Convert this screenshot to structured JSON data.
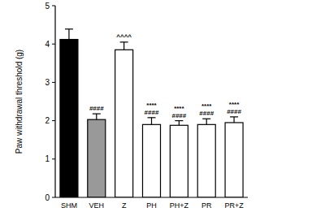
{
  "chart_data": {
    "type": "bar",
    "y_label": "Paw withdrawal threshold (g)",
    "categories": [
      "SHM",
      "VEH",
      "Z",
      "PH",
      "PH+Z",
      "PR",
      "PR+Z"
    ],
    "values": [
      4.12,
      2.03,
      3.85,
      1.9,
      1.88,
      1.9,
      1.95
    ],
    "errors": [
      0.27,
      0.15,
      0.2,
      0.18,
      0.12,
      0.15,
      0.15
    ],
    "annotations": [
      null,
      [
        "####"
      ],
      [
        "^^^^"
      ],
      [
        "****",
        "####"
      ],
      [
        "****",
        "####"
      ],
      [
        "****",
        "####"
      ],
      [
        "****",
        "####"
      ]
    ],
    "colors": [
      "#000000",
      "#999999",
      "#ffffff",
      "#ffffff",
      "#ffffff",
      "#ffffff",
      "#ffffff"
    ],
    "ylim": [
      0,
      5
    ],
    "yticks": [
      0,
      1,
      2,
      3,
      4,
      5
    ],
    "grid": false
  }
}
